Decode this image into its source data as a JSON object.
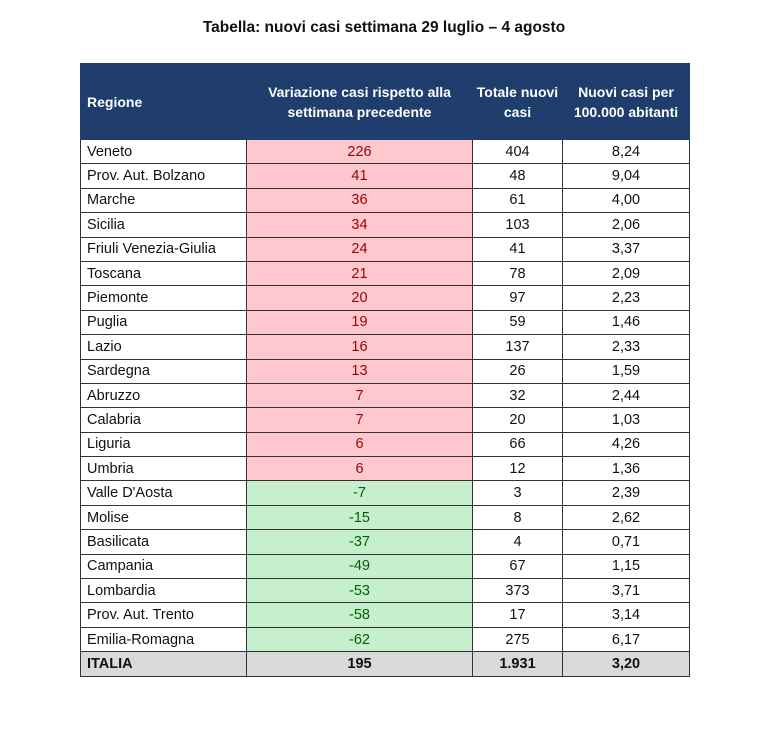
{
  "title": "Tabella: nuovi casi settimana 29 luglio – 4 agosto",
  "colors": {
    "header_bg": "#1f3e6d",
    "increase_bg": "#ffc7ce",
    "increase_text": "#9c0006",
    "decrease_bg": "#c6efce",
    "decrease_text": "#006100",
    "total_bg": "#d9d9d9"
  },
  "columns": [
    "Regione",
    "Variazione casi rispetto alla settimana precedente",
    "Totale nuovi casi",
    "Nuovi casi per 100.000 abitanti"
  ],
  "rows": [
    [
      "Veneto",
      "226",
      "404",
      "8,24"
    ],
    [
      "Prov. Aut. Bolzano",
      "41",
      "48",
      "9,04"
    ],
    [
      "Marche",
      "36",
      "61",
      "4,00"
    ],
    [
      "Sicilia",
      "34",
      "103",
      "2,06"
    ],
    [
      "Friuli Venezia-Giulia",
      "24",
      "41",
      "3,37"
    ],
    [
      "Toscana",
      "21",
      "78",
      "2,09"
    ],
    [
      "Piemonte",
      "20",
      "97",
      "2,23"
    ],
    [
      "Puglia",
      "19",
      "59",
      "1,46"
    ],
    [
      "Lazio",
      "16",
      "137",
      "2,33"
    ],
    [
      "Sardegna",
      "13",
      "26",
      "1,59"
    ],
    [
      "Abruzzo",
      "7",
      "32",
      "2,44"
    ],
    [
      "Calabria",
      "7",
      "20",
      "1,03"
    ],
    [
      "Liguria",
      "6",
      "66",
      "4,26"
    ],
    [
      "Umbria",
      "6",
      "12",
      "1,36"
    ],
    [
      "Valle D'Aosta",
      "-7",
      "3",
      "2,39"
    ],
    [
      "Molise",
      "-15",
      "8",
      "2,62"
    ],
    [
      "Basilicata",
      "-37",
      "4",
      "0,71"
    ],
    [
      "Campania",
      "-49",
      "67",
      "1,15"
    ],
    [
      "Lombardia",
      "-53",
      "373",
      "3,71"
    ],
    [
      "Prov. Aut. Trento",
      "-58",
      "17",
      "3,14"
    ],
    [
      "Emilia-Romagna",
      "-62",
      "275",
      "6,17"
    ]
  ],
  "total": [
    "ITALIA",
    "195",
    "1.931",
    "3,20"
  ]
}
